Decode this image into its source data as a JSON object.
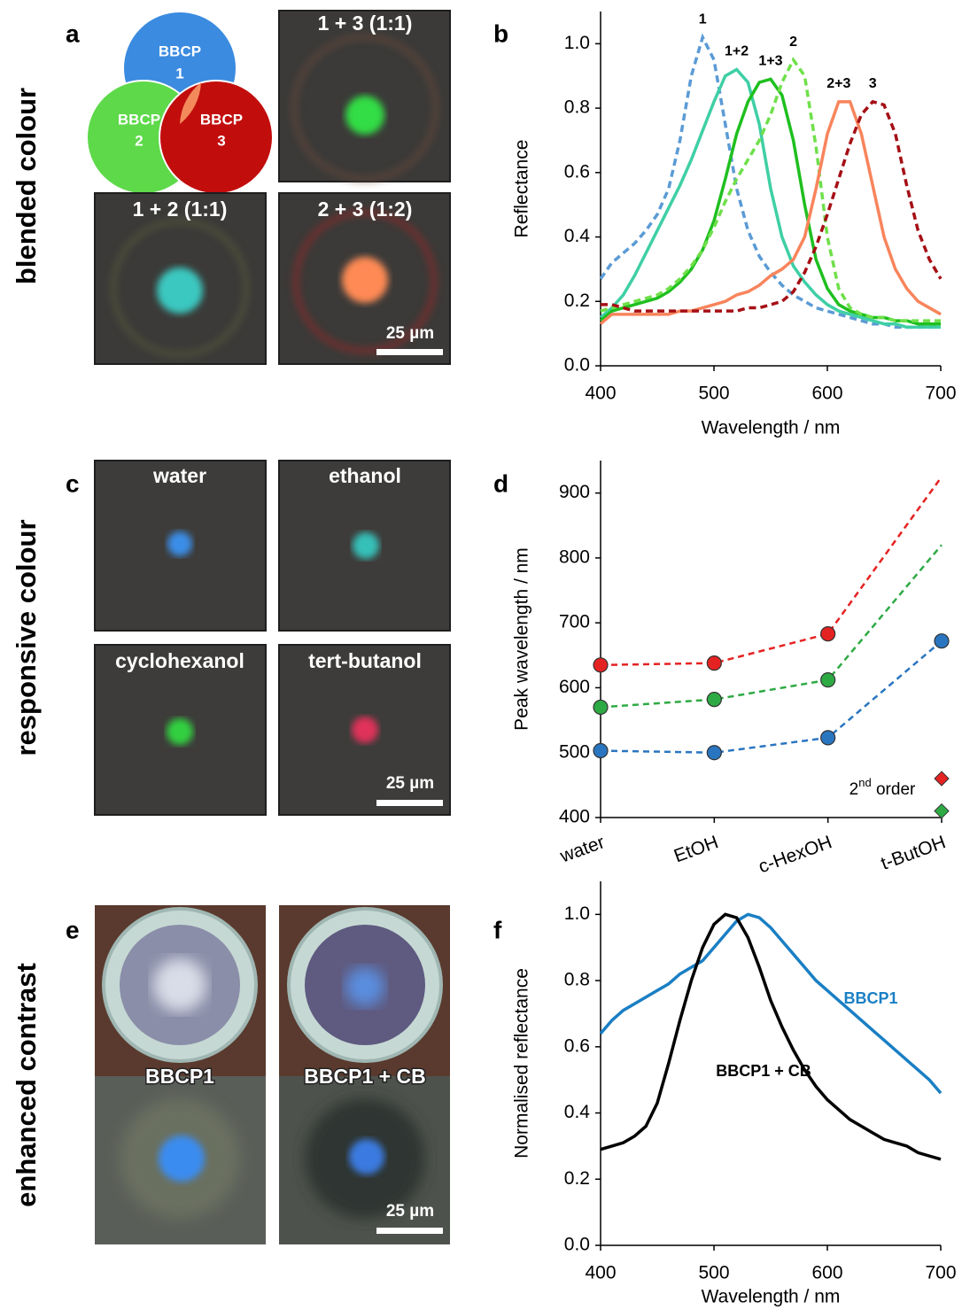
{
  "row_labels": [
    "blended colour",
    "responsive colour",
    "enhanced contrast"
  ],
  "panel_letters": [
    "a",
    "b",
    "c",
    "d",
    "e",
    "f"
  ],
  "panel_a": {
    "venn": [
      [
        "BBCP",
        "1"
      ],
      [
        "BBCP",
        "2"
      ],
      [
        "BBCP",
        "3"
      ]
    ],
    "images": [
      "1 + 3 (1:1)",
      "1 + 2 (1:1)",
      "2 + 3 (1:2)"
    ],
    "scale_bar": "25 µm"
  },
  "panel_c": {
    "images": [
      "water",
      "ethanol",
      "cyclohexanol",
      "tert-butanol"
    ],
    "scale_bar": "25 µm"
  },
  "panel_e": {
    "images": [
      "BBCP1",
      "BBCP1 + CB"
    ],
    "scale_bar": "25 µm"
  },
  "chart_data": [
    {
      "type": "line",
      "x_label": "Wavelength / nm",
      "y_label": "Reflectance",
      "x": [
        400,
        410,
        420,
        430,
        440,
        450,
        460,
        470,
        480,
        490,
        500,
        510,
        520,
        530,
        540,
        550,
        560,
        570,
        580,
        590,
        600,
        610,
        620,
        630,
        640,
        650,
        660,
        670,
        680,
        690,
        700
      ],
      "xlim": [
        400,
        700
      ],
      "xticks": [
        400,
        500,
        600,
        700
      ],
      "ylim": [
        0,
        1.1
      ],
      "yticks": [
        {
          "value": 0,
          "label": "0.0"
        },
        0.2,
        0.4,
        0.6,
        0.8,
        {
          "value": 1,
          "label": "1.0"
        }
      ],
      "series": [
        {
          "name": "1",
          "color": "#5b9bd5",
          "dash": true,
          "values": [
            0.27,
            0.32,
            0.35,
            0.38,
            0.42,
            0.47,
            0.55,
            0.7,
            0.9,
            1.02,
            0.95,
            0.75,
            0.55,
            0.42,
            0.34,
            0.29,
            0.25,
            0.22,
            0.2,
            0.18,
            0.17,
            0.16,
            0.15,
            0.14,
            0.13,
            0.13,
            0.12,
            0.12,
            0.12,
            0.12,
            0.12
          ]
        },
        {
          "name": "1+2",
          "color": "#3fcfa5",
          "dash": false,
          "values": [
            0.15,
            0.18,
            0.22,
            0.28,
            0.35,
            0.42,
            0.49,
            0.56,
            0.64,
            0.73,
            0.82,
            0.9,
            0.92,
            0.88,
            0.75,
            0.55,
            0.4,
            0.31,
            0.26,
            0.22,
            0.19,
            0.17,
            0.16,
            0.15,
            0.14,
            0.13,
            0.13,
            0.12,
            0.12,
            0.12,
            0.12
          ]
        },
        {
          "name": "1+3",
          "color": "#1fbf1f",
          "dash": false,
          "values": [
            0.14,
            0.17,
            0.18,
            0.19,
            0.2,
            0.21,
            0.23,
            0.26,
            0.3,
            0.36,
            0.45,
            0.58,
            0.72,
            0.82,
            0.88,
            0.89,
            0.84,
            0.7,
            0.5,
            0.33,
            0.24,
            0.19,
            0.17,
            0.16,
            0.15,
            0.15,
            0.14,
            0.14,
            0.13,
            0.13,
            0.13
          ]
        },
        {
          "name": "2",
          "color": "#6fe04a",
          "dash": true,
          "values": [
            0.17,
            0.18,
            0.19,
            0.2,
            0.21,
            0.22,
            0.24,
            0.27,
            0.31,
            0.36,
            0.43,
            0.51,
            0.58,
            0.64,
            0.7,
            0.78,
            0.88,
            0.95,
            0.9,
            0.68,
            0.4,
            0.24,
            0.18,
            0.16,
            0.15,
            0.15,
            0.14,
            0.14,
            0.14,
            0.14,
            0.14
          ]
        },
        {
          "name": "2+3",
          "color": "#f8845c",
          "dash": false,
          "values": [
            0.13,
            0.16,
            0.16,
            0.16,
            0.16,
            0.16,
            0.16,
            0.17,
            0.17,
            0.18,
            0.19,
            0.2,
            0.22,
            0.23,
            0.25,
            0.28,
            0.3,
            0.33,
            0.4,
            0.55,
            0.72,
            0.82,
            0.82,
            0.72,
            0.56,
            0.4,
            0.3,
            0.24,
            0.2,
            0.18,
            0.16
          ]
        },
        {
          "name": "3",
          "color": "#a50f15",
          "dash": true,
          "values": [
            0.19,
            0.19,
            0.18,
            0.17,
            0.17,
            0.17,
            0.17,
            0.17,
            0.17,
            0.17,
            0.17,
            0.17,
            0.17,
            0.18,
            0.18,
            0.19,
            0.2,
            0.23,
            0.29,
            0.37,
            0.47,
            0.58,
            0.69,
            0.78,
            0.82,
            0.81,
            0.72,
            0.56,
            0.42,
            0.33,
            0.27
          ]
        }
      ]
    },
    {
      "type": "line",
      "y_label": "Peak wavelength / nm",
      "categories": [
        "water",
        "EtOH",
        "c-HexOH",
        "t-ButOH"
      ],
      "ylim": [
        400,
        950
      ],
      "yticks": [
        400,
        500,
        600,
        700,
        800,
        900
      ],
      "second_order_label": "2nd order",
      "series": [
        {
          "color": "#e52222",
          "dash": true,
          "values": [
            635,
            638,
            683,
            925
          ],
          "markers": [
            true,
            true,
            true,
            false
          ],
          "second_order": 460
        },
        {
          "color": "#2eaa44",
          "dash": true,
          "values": [
            570,
            582,
            612,
            820
          ],
          "markers": [
            true,
            true,
            true,
            false
          ],
          "second_order": 410
        },
        {
          "color": "#2a75c0",
          "dash": true,
          "values": [
            503,
            500,
            523,
            672
          ],
          "markers": [
            true,
            true,
            true,
            true
          ]
        }
      ]
    },
    {
      "type": "line",
      "x_label": "Wavelength / nm",
      "y_label": "Normalised reflectance",
      "x": [
        400,
        410,
        420,
        430,
        440,
        450,
        460,
        470,
        480,
        490,
        500,
        510,
        520,
        530,
        540,
        550,
        560,
        570,
        580,
        590,
        600,
        610,
        620,
        630,
        640,
        650,
        660,
        670,
        680,
        690,
        700
      ],
      "xlim": [
        400,
        700
      ],
      "xticks": [
        400,
        500,
        600,
        700
      ],
      "ylim": [
        0,
        1.1
      ],
      "yticks": [
        {
          "value": 0,
          "label": "0.0"
        },
        0.2,
        0.4,
        0.6,
        0.8,
        {
          "value": 1,
          "label": "1.0"
        }
      ],
      "series": [
        {
          "name": "BBCP1",
          "color": "#1a7fc4",
          "dash": false,
          "values": [
            0.64,
            0.68,
            0.71,
            0.73,
            0.75,
            0.77,
            0.79,
            0.82,
            0.84,
            0.86,
            0.9,
            0.94,
            0.98,
            1.0,
            0.99,
            0.96,
            0.92,
            0.88,
            0.84,
            0.8,
            0.77,
            0.74,
            0.71,
            0.68,
            0.65,
            0.62,
            0.59,
            0.56,
            0.53,
            0.5,
            0.46
          ]
        },
        {
          "name": "BBCP1 + CB",
          "color": "#000000",
          "dash": false,
          "values": [
            0.29,
            0.3,
            0.31,
            0.33,
            0.36,
            0.43,
            0.55,
            0.68,
            0.8,
            0.9,
            0.97,
            1.0,
            0.99,
            0.93,
            0.84,
            0.74,
            0.66,
            0.59,
            0.53,
            0.48,
            0.44,
            0.41,
            0.38,
            0.36,
            0.34,
            0.32,
            0.31,
            0.3,
            0.28,
            0.27,
            0.26
          ]
        }
      ]
    }
  ]
}
